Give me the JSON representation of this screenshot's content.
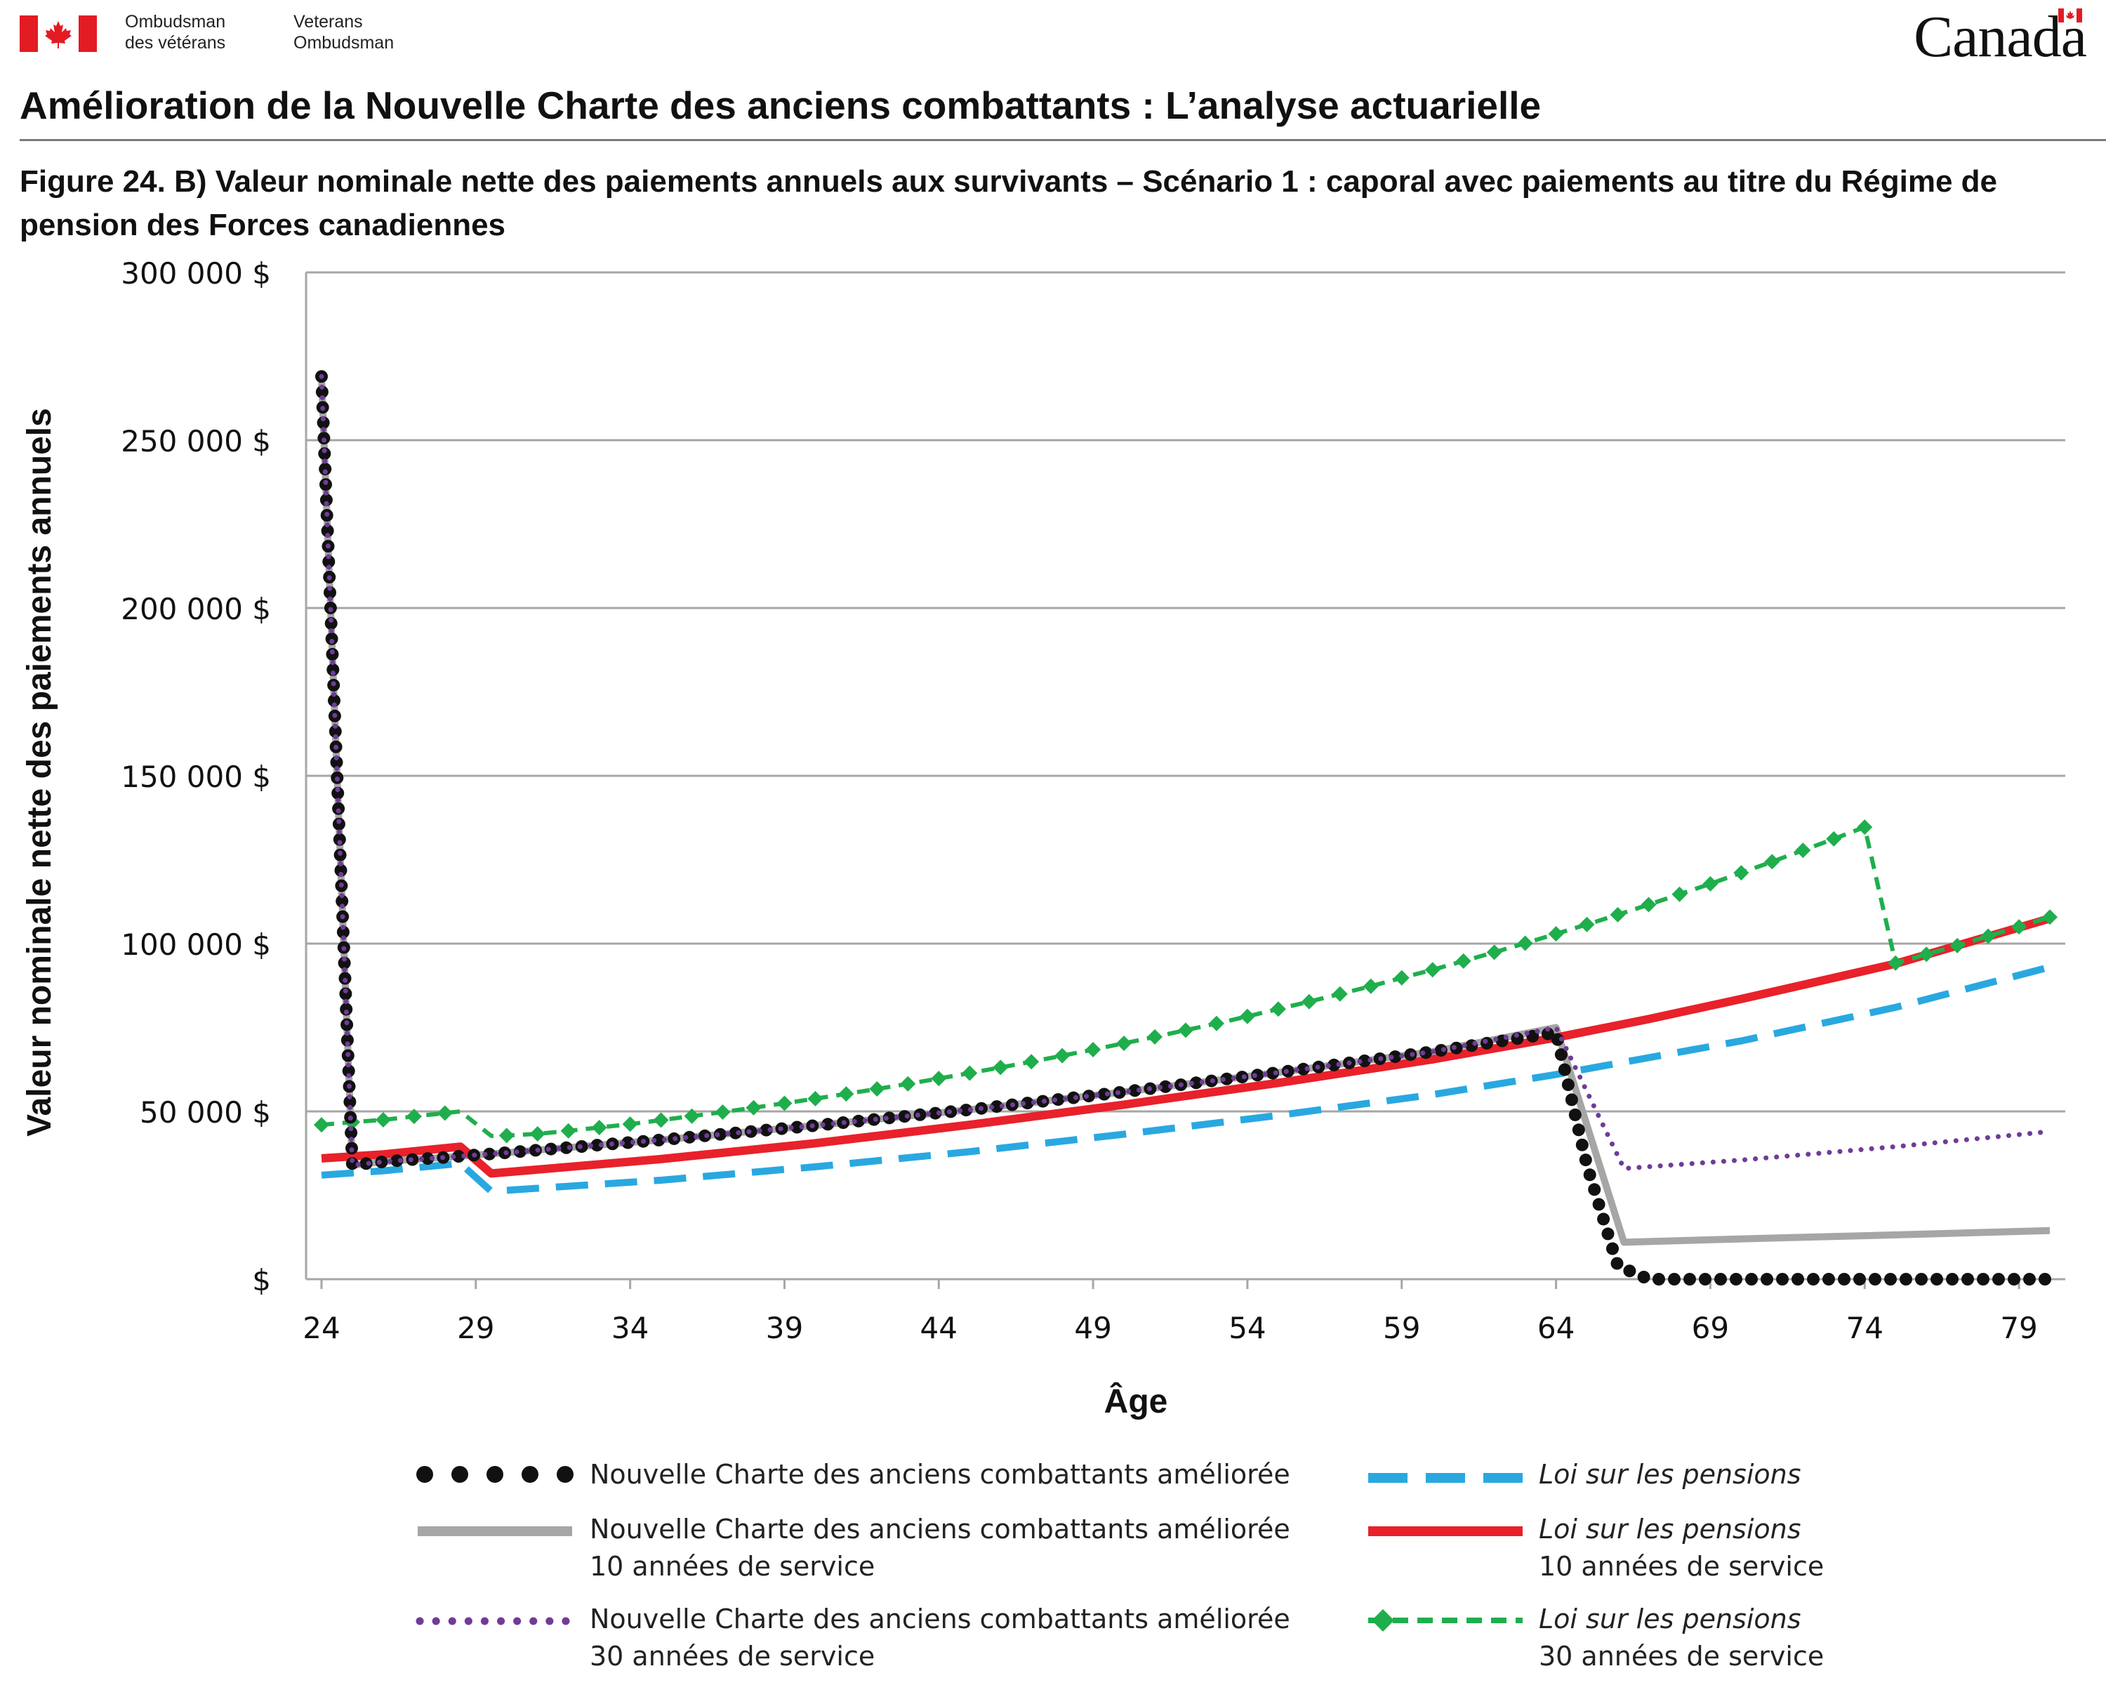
{
  "header": {
    "org_name_fr_line1": "Ombudsman",
    "org_name_fr_line2": "des vétérans",
    "org_name_en_line1": "Veterans",
    "org_name_en_line2": "Ombudsman",
    "wordmark": "Canada",
    "report_title": "Amélioration de la Nouvelle Charte des anciens combattants : L’analyse actuarielle"
  },
  "figure_title": "Figure 24. B) Valeur nominale nette des paiements annuels aux survivants – Scénario 1 : caporal avec paiements au titre du Régime de pension des Forces canadiennes",
  "colors": {
    "flag_red": "#e31b23",
    "black_dotted": "#111111",
    "gray": "#a6a6a6",
    "purple": "#6f3c98",
    "blue": "#29a8e0",
    "red": "#e8212a",
    "green": "#1fae4c",
    "grid": "#a6a6a6"
  },
  "chart_data": {
    "type": "line",
    "xlabel": "Âge",
    "ylabel": "Valeur nominale nette des paiements annuels",
    "xlim": [
      23.5,
      80.5
    ],
    "ylim": [
      0,
      300000
    ],
    "xticks": [
      24,
      29,
      34,
      39,
      44,
      49,
      54,
      59,
      64,
      69,
      74,
      79
    ],
    "yticks": [
      0,
      50000,
      100000,
      150000,
      200000,
      250000,
      300000
    ],
    "ytick_labels": [
      "$",
      "50 000 $",
      "100 000 $",
      "150 000 $",
      "200 000 $",
      "250 000 $",
      "300 000 $"
    ],
    "grid": "horizontal",
    "legend_position": "bottom",
    "series": [
      {
        "name": "Nouvelle Charte des anciens combattants améliorée",
        "style": "black-dotted",
        "points": [
          [
            24,
            269000
          ],
          [
            25,
            34000
          ],
          [
            26,
            35000
          ],
          [
            27,
            35700
          ],
          [
            28,
            36300
          ],
          [
            29,
            37000
          ],
          [
            30,
            37700
          ],
          [
            35,
            41500
          ],
          [
            40,
            45800
          ],
          [
            45,
            50500
          ],
          [
            50,
            55800
          ],
          [
            55,
            61600
          ],
          [
            60,
            67800
          ],
          [
            64,
            73500
          ],
          [
            65,
            34000
          ],
          [
            66,
            4000
          ],
          [
            67,
            0
          ],
          [
            80,
            0
          ]
        ]
      },
      {
        "name": "Nouvelle Charte des anciens combattants améliorée 10 années de service",
        "style": "gray-solid",
        "points": [
          [
            24,
            269000
          ],
          [
            25,
            34000
          ],
          [
            26,
            35000
          ],
          [
            27,
            35700
          ],
          [
            28,
            36300
          ],
          [
            29,
            37000
          ],
          [
            30,
            37700
          ],
          [
            35,
            41500
          ],
          [
            40,
            45800
          ],
          [
            45,
            50500
          ],
          [
            50,
            55800
          ],
          [
            55,
            61600
          ],
          [
            60,
            67800
          ],
          [
            64,
            75000
          ],
          [
            66.2,
            11000
          ],
          [
            70,
            12000
          ],
          [
            75,
            13200
          ],
          [
            80,
            14500
          ]
        ]
      },
      {
        "name": "Nouvelle Charte des anciens combattants améliorée 30 années de service",
        "style": "purple-dotted",
        "points": [
          [
            24,
            269000
          ],
          [
            25,
            34000
          ],
          [
            26,
            35000
          ],
          [
            27,
            35700
          ],
          [
            28,
            36300
          ],
          [
            29,
            37000
          ],
          [
            30,
            37700
          ],
          [
            35,
            41500
          ],
          [
            40,
            45800
          ],
          [
            45,
            50500
          ],
          [
            50,
            55800
          ],
          [
            55,
            61600
          ],
          [
            60,
            67800
          ],
          [
            64,
            75000
          ],
          [
            66.2,
            33000
          ],
          [
            70,
            35500
          ],
          [
            75,
            39500
          ],
          [
            80,
            44000
          ]
        ]
      },
      {
        "name": "Loi sur les pensions",
        "style": "blue-dashed",
        "points": [
          [
            24,
            31000
          ],
          [
            26,
            32300
          ],
          [
            28.5,
            34500
          ],
          [
            29.5,
            26200
          ],
          [
            35,
            29500
          ],
          [
            40,
            33500
          ],
          [
            45,
            38000
          ],
          [
            50,
            43200
          ],
          [
            55,
            48800
          ],
          [
            60,
            55000
          ],
          [
            64,
            61000
          ],
          [
            67,
            66000
          ],
          [
            70,
            71000
          ],
          [
            75,
            81000
          ],
          [
            80,
            93000
          ]
        ]
      },
      {
        "name": "Loi sur les pensions 10 années de service",
        "style": "red-solid",
        "points": [
          [
            24,
            36000
          ],
          [
            26,
            37200
          ],
          [
            28.5,
            39500
          ],
          [
            29.5,
            31500
          ],
          [
            35,
            35800
          ],
          [
            40,
            40500
          ],
          [
            45,
            46000
          ],
          [
            50,
            52000
          ],
          [
            55,
            58500
          ],
          [
            60,
            65500
          ],
          [
            64,
            72000
          ],
          [
            67,
            77500
          ],
          [
            70,
            83500
          ],
          [
            75,
            94000
          ],
          [
            80,
            107500
          ]
        ]
      },
      {
        "name": "Loi sur les pensions 30 années de service",
        "style": "green-dashed-diamond",
        "points": [
          [
            24,
            46000
          ],
          [
            25,
            46800
          ],
          [
            26,
            47500
          ],
          [
            27,
            48500
          ],
          [
            28,
            49500
          ],
          [
            28.5,
            50000
          ],
          [
            29.5,
            42700
          ],
          [
            30,
            42800
          ],
          [
            31,
            43300
          ],
          [
            32,
            44200
          ],
          [
            33,
            45200
          ],
          [
            34,
            46200
          ],
          [
            35,
            47400
          ],
          [
            36,
            48600
          ],
          [
            37,
            49800
          ],
          [
            38,
            51100
          ],
          [
            39,
            52400
          ],
          [
            40,
            53800
          ],
          [
            41,
            55200
          ],
          [
            42,
            56700
          ],
          [
            43,
            58200
          ],
          [
            44,
            59800
          ],
          [
            45,
            61400
          ],
          [
            46,
            63100
          ],
          [
            47,
            64800
          ],
          [
            48,
            66600
          ],
          [
            49,
            68400
          ],
          [
            50,
            70300
          ],
          [
            51,
            72200
          ],
          [
            52,
            74200
          ],
          [
            53,
            76200
          ],
          [
            54,
            78300
          ],
          [
            55,
            80500
          ],
          [
            56,
            82700
          ],
          [
            57,
            85000
          ],
          [
            58,
            87300
          ],
          [
            59,
            89800
          ],
          [
            60,
            92200
          ],
          [
            61,
            94800
          ],
          [
            62,
            97400
          ],
          [
            63,
            100100
          ],
          [
            64,
            102900
          ],
          [
            65,
            105700
          ],
          [
            66,
            108600
          ],
          [
            67,
            111600
          ],
          [
            68,
            114700
          ],
          [
            69,
            117800
          ],
          [
            70,
            121100
          ],
          [
            71,
            124400
          ],
          [
            72,
            127800
          ],
          [
            73,
            131200
          ],
          [
            74,
            134700
          ],
          [
            75,
            94200
          ],
          [
            76,
            96800
          ],
          [
            77,
            99400
          ],
          [
            78,
            102200
          ],
          [
            79,
            105000
          ],
          [
            80,
            107900
          ]
        ]
      }
    ]
  },
  "legend": {
    "item1_line1": "Nouvelle Charte des anciens combattants améliorée",
    "item2_line1": "Nouvelle Charte des anciens combattants améliorée",
    "item2_line2": "10 années de service",
    "item3_line1": "Nouvelle Charte des anciens combattants améliorée",
    "item3_line2": "30 années de service",
    "item4_line1": "Loi sur les pensions",
    "item5_line1": "Loi sur les pensions",
    "item5_line2": "10 années de service",
    "item6_line1": "Loi sur les pensions",
    "item6_line2": "30 années de service"
  }
}
